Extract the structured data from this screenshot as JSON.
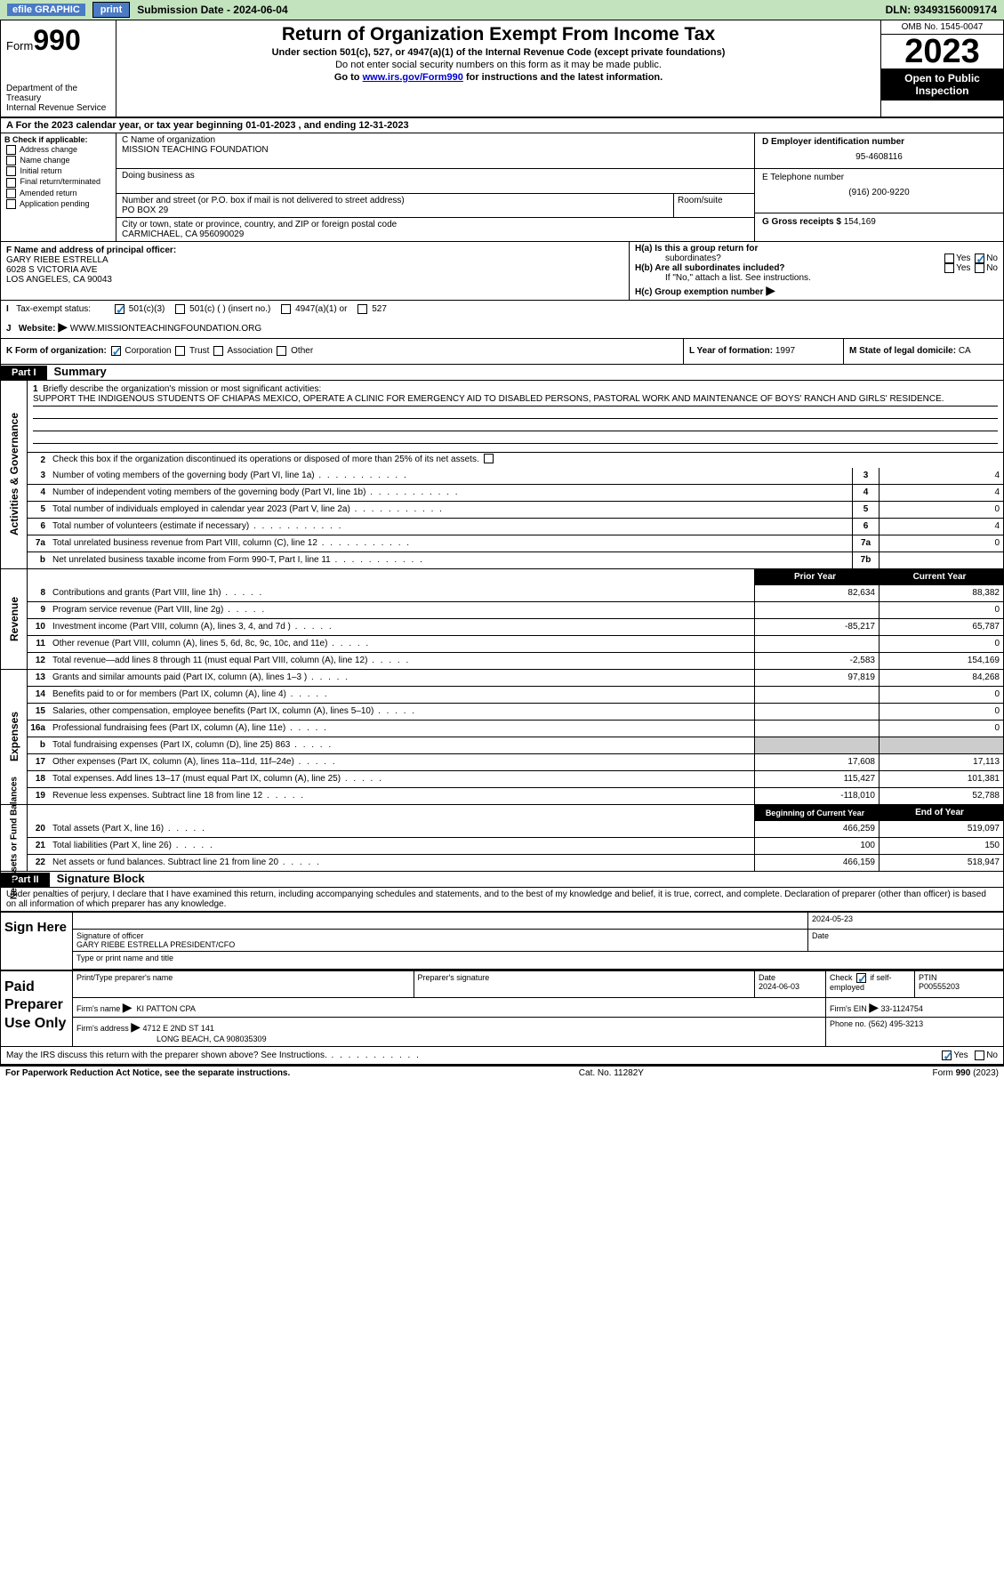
{
  "topbar": {
    "efile_label": "efile GRAPHIC",
    "print_label": "print",
    "submission_label": "Submission Date - 2024-06-04",
    "dln": "DLN: 93493156009174"
  },
  "header": {
    "form_label": "Form",
    "form_number": "990",
    "dept": "Department of the Treasury",
    "irs": "Internal Revenue Service",
    "title": "Return of Organization Exempt From Income Tax",
    "subtitle": "Under section 501(c), 527, or 4947(a)(1) of the Internal Revenue Code (except private foundations)",
    "warn": "Do not enter social security numbers on this form as it may be made public.",
    "goto_pre": "Go to ",
    "goto_link": "www.irs.gov/Form990",
    "goto_post": " for instructions and the latest information.",
    "omb": "OMB No. 1545-0047",
    "year": "2023",
    "inspect": "Open to Public Inspection"
  },
  "row_a": "A  For the 2023 calendar year, or tax year beginning 01-01-2023     , and ending 12-31-2023",
  "box_b": {
    "label": "B Check if applicable:",
    "items": [
      "Address change",
      "Name change",
      "Initial return",
      "Final return/terminated",
      "Amended return",
      "Application pending"
    ]
  },
  "box_c": {
    "name_label": "C Name of organization",
    "name": "MISSION TEACHING FOUNDATION",
    "dba_label": "Doing business as",
    "addr_label": "Number and street (or P.O. box if mail is not delivered to street address)",
    "addr": "PO BOX 29",
    "room_label": "Room/suite",
    "city_label": "City or town, state or province, country, and ZIP or foreign postal code",
    "city": "CARMICHAEL, CA  956090029"
  },
  "box_d": {
    "label": "D Employer identification number",
    "value": "95-4608116"
  },
  "box_e": {
    "label": "E Telephone number",
    "value": "(916) 200-9220"
  },
  "box_g": {
    "label": "G Gross receipts $",
    "value": "154,169"
  },
  "box_f": {
    "label": "F  Name and address of principal officer:",
    "name": "GARY RIEBE ESTRELLA",
    "addr1": "6028 S VICTORIA AVE",
    "addr2": "LOS ANGELES, CA  90043"
  },
  "box_h": {
    "a": "H(a)  Is this a group return for",
    "a2": "subordinates?",
    "b": "H(b)  Are all subordinates included?",
    "b2": "If \"No,\" attach a list. See instructions.",
    "c": "H(c)  Group exemption number ",
    "yes": "Yes",
    "no": "No"
  },
  "box_i": {
    "label": "Tax-exempt status:",
    "o1": "501(c)(3)",
    "o2": "501(c) (  ) (insert no.)",
    "o3": "4947(a)(1) or",
    "o4": "527"
  },
  "box_j": {
    "label": "Website: ",
    "value": "WWW.MISSIONTEACHINGFOUNDATION.ORG"
  },
  "box_k": {
    "label": "K Form of organization:",
    "o1": "Corporation",
    "o2": "Trust",
    "o3": "Association",
    "o4": "Other"
  },
  "box_l": {
    "label": "L Year of formation:",
    "value": "1997"
  },
  "box_m": {
    "label": "M State of legal domicile:",
    "value": "CA"
  },
  "part1": {
    "label": "Part I",
    "title": "Summary"
  },
  "summary": {
    "sidelabels": [
      "Activities & Governance",
      "Revenue",
      "Expenses",
      "Net Assets or Fund Balances"
    ],
    "line1_label": "Briefly describe the organization's mission or most significant activities:",
    "line1_text": "SUPPORT THE INDIGENOUS STUDENTS OF CHIAPAS MEXICO, OPERATE A CLINIC FOR EMERGENCY AID TO DISABLED PERSONS, PASTORAL WORK AND MAINTENANCE OF BOYS' RANCH AND GIRLS' RESIDENCE.",
    "line2": "Check this box         if the organization discontinued its operations or disposed of more than 25% of its net assets.",
    "lines_ag": [
      {
        "n": "3",
        "desc": "Number of voting members of the governing body (Part VI, line 1a)",
        "box": "3",
        "val": "4"
      },
      {
        "n": "4",
        "desc": "Number of independent voting members of the governing body (Part VI, line 1b)",
        "box": "4",
        "val": "4"
      },
      {
        "n": "5",
        "desc": "Total number of individuals employed in calendar year 2023 (Part V, line 2a)",
        "box": "5",
        "val": "0"
      },
      {
        "n": "6",
        "desc": "Total number of volunteers (estimate if necessary)",
        "box": "6",
        "val": "4"
      },
      {
        "n": "7a",
        "desc": "Total unrelated business revenue from Part VIII, column (C), line 12",
        "box": "7a",
        "val": "0"
      },
      {
        "n": "b",
        "desc": "Net unrelated business taxable income from Form 990-T, Part I, line 11",
        "box": "7b",
        "val": ""
      }
    ],
    "col_prior": "Prior Year",
    "col_current": "Current Year",
    "lines_rev": [
      {
        "n": "8",
        "desc": "Contributions and grants (Part VIII, line 1h)",
        "prior": "82,634",
        "curr": "88,382"
      },
      {
        "n": "9",
        "desc": "Program service revenue (Part VIII, line 2g)",
        "prior": "",
        "curr": "0"
      },
      {
        "n": "10",
        "desc": "Investment income (Part VIII, column (A), lines 3, 4, and 7d )",
        "prior": "-85,217",
        "curr": "65,787"
      },
      {
        "n": "11",
        "desc": "Other revenue (Part VIII, column (A), lines 5, 6d, 8c, 9c, 10c, and 11e)",
        "prior": "",
        "curr": "0"
      },
      {
        "n": "12",
        "desc": "Total revenue—add lines 8 through 11 (must equal Part VIII, column (A), line 12)",
        "prior": "-2,583",
        "curr": "154,169"
      }
    ],
    "lines_exp": [
      {
        "n": "13",
        "desc": "Grants and similar amounts paid (Part IX, column (A), lines 1–3 )",
        "prior": "97,819",
        "curr": "84,268"
      },
      {
        "n": "14",
        "desc": "Benefits paid to or for members (Part IX, column (A), line 4)",
        "prior": "",
        "curr": "0"
      },
      {
        "n": "15",
        "desc": "Salaries, other compensation, employee benefits (Part IX, column (A), lines 5–10)",
        "prior": "",
        "curr": "0"
      },
      {
        "n": "16a",
        "desc": "Professional fundraising fees (Part IX, column (A), line 11e)",
        "prior": "",
        "curr": "0"
      },
      {
        "n": "b",
        "desc": "Total fundraising expenses (Part IX, column (D), line 25) 863",
        "prior": "GREY",
        "curr": "GREY"
      },
      {
        "n": "17",
        "desc": "Other expenses (Part IX, column (A), lines 11a–11d, 11f–24e)",
        "prior": "17,608",
        "curr": "17,113"
      },
      {
        "n": "18",
        "desc": "Total expenses. Add lines 13–17 (must equal Part IX, column (A), line 25)",
        "prior": "115,427",
        "curr": "101,381"
      },
      {
        "n": "19",
        "desc": "Revenue less expenses. Subtract line 18 from line 12",
        "prior": "-118,010",
        "curr": "52,788"
      }
    ],
    "col_bcy": "Beginning of Current Year",
    "col_eoy": "End of Year",
    "lines_na": [
      {
        "n": "20",
        "desc": "Total assets (Part X, line 16)",
        "prior": "466,259",
        "curr": "519,097"
      },
      {
        "n": "21",
        "desc": "Total liabilities (Part X, line 26)",
        "prior": "100",
        "curr": "150"
      },
      {
        "n": "22",
        "desc": "Net assets or fund balances. Subtract line 21 from line 20",
        "prior": "466,159",
        "curr": "518,947"
      }
    ]
  },
  "part2": {
    "label": "Part II",
    "title": "Signature Block"
  },
  "penalties": "Under penalties of perjury, I declare that I have examined this return, including accompanying schedules and statements, and to the best of my knowledge and belief, it is true, correct, and complete. Declaration of preparer (other than officer) is based on all information of which preparer has any knowledge.",
  "sign": {
    "left": "Sign Here",
    "sig_officer": "Signature of officer",
    "officer_name": "GARY RIEBE ESTRELLA  PRESIDENT/CFO",
    "type_name": "Type or print name and title",
    "date_label": "Date",
    "date": "2024-05-23"
  },
  "paid": {
    "left": "Paid Preparer Use Only",
    "prep_name_label": "Print/Type preparer's name",
    "prep_sig_label": "Preparer's signature",
    "date_label": "Date",
    "date": "2024-06-03",
    "check_label": "Check          if self-employed",
    "ptin_label": "PTIN",
    "ptin": "P00555203",
    "firm_name_label": "Firm's name",
    "firm_name": "KI PATTON CPA",
    "firm_ein_label": "Firm's EIN",
    "firm_ein": "33-1124754",
    "firm_addr_label": "Firm's address",
    "firm_addr1": "4712 E 2ND ST 141",
    "firm_addr2": "LONG BEACH, CA  908035309",
    "phone_label": "Phone no.",
    "phone": "(562) 495-3213"
  },
  "discuss": {
    "text": "May the IRS discuss this return with the preparer shown above? See Instructions.",
    "yes": "Yes",
    "no": "No"
  },
  "footer": {
    "left": "For Paperwork Reduction Act Notice, see the separate instructions.",
    "mid": "Cat. No. 11282Y",
    "right_pre": "Form ",
    "right_b": "990",
    "right_post": " (2023)"
  }
}
